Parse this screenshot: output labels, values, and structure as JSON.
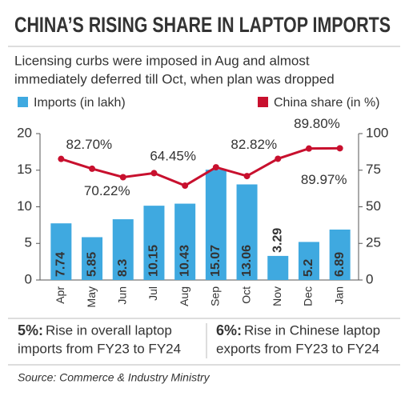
{
  "chart_data": {
    "type": "bar-line",
    "title": "CHINA’S RISING SHARE IN LAPTOP IMPORTS",
    "subtitle": [
      "Licensing curbs were imposed in Aug and almost",
      "immediately deferred till Oct, when plan was dropped"
    ],
    "categories": [
      "Apr",
      "May",
      "Jun",
      "Jul",
      "Aug",
      "Sep",
      "Oct",
      "Nov",
      "Dec",
      "Jan"
    ],
    "highlight_indices": [
      4,
      5,
      6
    ],
    "highlight_color": "#c8102e",
    "series": [
      {
        "name": "Imports (in lakh)",
        "color": "#3fa9e0",
        "kind": "bar",
        "values": [
          7.74,
          5.85,
          8.3,
          10.15,
          10.43,
          15.07,
          13.06,
          3.29,
          5.2,
          6.89
        ]
      },
      {
        "name": "China share (in %)",
        "color": "#c8102e",
        "kind": "line",
        "axis": "y2",
        "values": [
          82.7,
          76,
          70.22,
          73,
          64.45,
          77,
          71,
          82.82,
          89.8,
          89.97
        ],
        "value_labels": [
          "82.70%",
          null,
          "70.22%",
          null,
          "64.45%",
          null,
          null,
          "82.82%",
          "89.80%",
          "89.97%"
        ]
      }
    ],
    "ylim": [
      0,
      20
    ],
    "yticks": [
      0,
      5,
      10,
      15,
      20
    ],
    "y2lim": [
      0,
      100
    ],
    "y2ticks": [
      0,
      25,
      50,
      75,
      100
    ],
    "notes": [
      {
        "figure": "5%:",
        "lines": [
          "Rise in overall laptop",
          "imports from FY23 to FY24"
        ]
      },
      {
        "figure": "6%:",
        "lines": [
          "Rise in Chinese laptop",
          "exports from FY23 to FY24"
        ]
      }
    ],
    "source": "Source: Commerce & Industry Ministry"
  }
}
